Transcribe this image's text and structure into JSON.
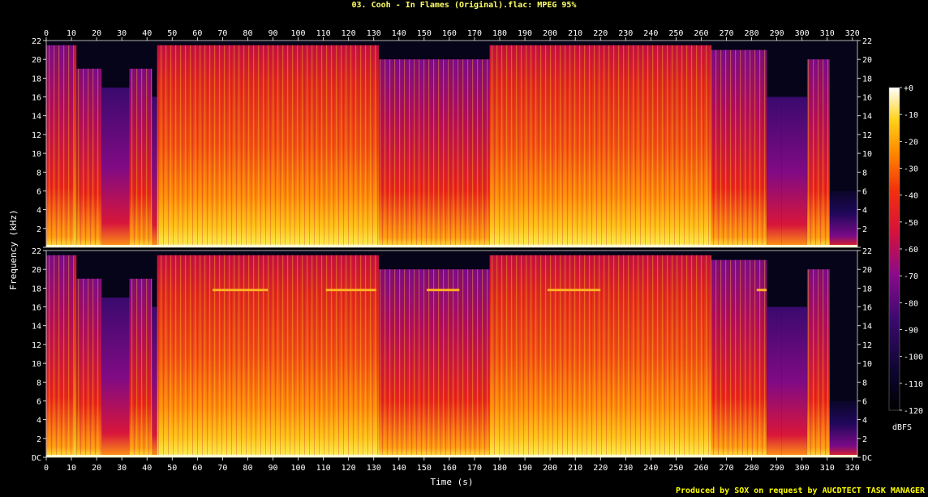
{
  "title": "03. Cooh - In Flames (Original).flac: MPEG 95%",
  "footer": "Produced by SOX on request by AUCDTECT TASK MANAGER",
  "chart_data": {
    "type": "heatmap",
    "xlabel": "Time (s)",
    "ylabel": "Frequency (kHz)",
    "colorbar_label": "dBFS",
    "xlim": [
      0,
      322
    ],
    "ylim": [
      0,
      22
    ],
    "x_ticks": [
      0,
      10,
      20,
      30,
      40,
      50,
      60,
      70,
      80,
      90,
      100,
      110,
      120,
      130,
      140,
      150,
      160,
      170,
      180,
      190,
      200,
      210,
      220,
      230,
      240,
      250,
      260,
      270,
      280,
      290,
      300,
      310,
      320
    ],
    "y_tick_labels": [
      "DC",
      "2",
      "4",
      "6",
      "8",
      "10",
      "12",
      "14",
      "16",
      "18",
      "20",
      "22"
    ],
    "y_tick_values": [
      0,
      2,
      4,
      6,
      8,
      10,
      12,
      14,
      16,
      18,
      20,
      22
    ],
    "colorbar_ticks": [
      "+0",
      "-10",
      "-20",
      "-30",
      "-40",
      "-50",
      "-60",
      "-70",
      "-80",
      "-90",
      "-100",
      "-110",
      "-120"
    ],
    "colorbar_values": [
      0,
      -10,
      -20,
      -30,
      -40,
      -50,
      -60,
      -70,
      -80,
      -90,
      -100,
      -110,
      -120
    ],
    "channels": [
      "left",
      "right"
    ],
    "segments": [
      {
        "t0": 0,
        "t1": 11,
        "cutoff_khz": 21.5,
        "level": 0.55
      },
      {
        "t0": 11,
        "t1": 12,
        "cutoff_khz": 21.5,
        "level": 0.75
      },
      {
        "t0": 12,
        "t1": 22,
        "cutoff_khz": 19,
        "level": 0.5
      },
      {
        "t0": 22,
        "t1": 33,
        "cutoff_khz": 17,
        "level": 0.45
      },
      {
        "t0": 33,
        "t1": 42,
        "cutoff_khz": 19,
        "level": 0.5
      },
      {
        "t0": 42,
        "t1": 44,
        "cutoff_khz": 16,
        "level": 0.4
      },
      {
        "t0": 44,
        "t1": 132,
        "cutoff_khz": 21.5,
        "level": 0.82
      },
      {
        "t0": 132,
        "t1": 176,
        "cutoff_khz": 20,
        "level": 0.62
      },
      {
        "t0": 176,
        "t1": 264,
        "cutoff_khz": 21.5,
        "level": 0.8
      },
      {
        "t0": 264,
        "t1": 286,
        "cutoff_khz": 21,
        "level": 0.65
      },
      {
        "t0": 286,
        "t1": 292,
        "cutoff_khz": 16,
        "level": 0.45
      },
      {
        "t0": 292,
        "t1": 302,
        "cutoff_khz": 16,
        "level": 0.35
      },
      {
        "t0": 302,
        "t1": 311,
        "cutoff_khz": 20,
        "level": 0.55
      },
      {
        "t0": 311,
        "t1": 322,
        "cutoff_khz": 6,
        "level": 0.15
      }
    ],
    "tones": [
      {
        "channel": "right",
        "t0": 66,
        "t1": 88,
        "freq_khz": 17.8
      },
      {
        "channel": "right",
        "t0": 111,
        "t1": 131,
        "freq_khz": 17.8
      },
      {
        "channel": "right",
        "t0": 151,
        "t1": 164,
        "freq_khz": 17.8
      },
      {
        "channel": "right",
        "t0": 199,
        "t1": 220,
        "freq_khz": 17.8
      },
      {
        "channel": "right",
        "t0": 282,
        "t1": 286,
        "freq_khz": 17.8
      }
    ]
  }
}
